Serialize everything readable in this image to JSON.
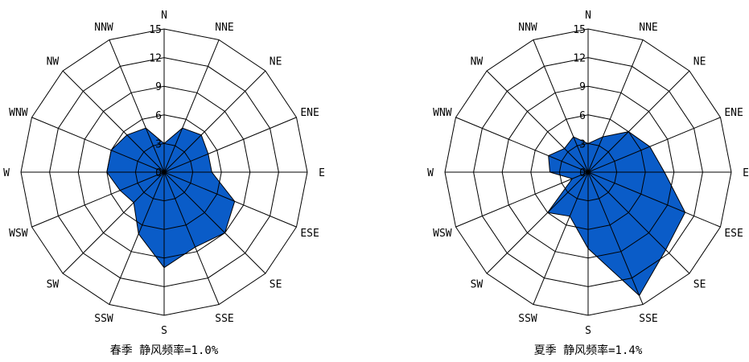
{
  "chart_data": [
    {
      "type": "radar",
      "caption": "春季  静风频率=1.0%",
      "directions": [
        "N",
        "NNE",
        "NE",
        "ENE",
        "E",
        "ESE",
        "SE",
        "SSE",
        "S",
        "SSW",
        "SW",
        "WSW",
        "W",
        "WNW",
        "NW",
        "NNW"
      ],
      "values": [
        3,
        5,
        5.5,
        5,
        5,
        8,
        9,
        8.5,
        10,
        7,
        4.5,
        5,
        6,
        6,
        5.5,
        5
      ],
      "ticks": [
        "0",
        "3",
        "6",
        "9",
        "12",
        "15"
      ],
      "rlim": [
        0,
        15
      ],
      "fill_color": "#0a5cc8"
    },
    {
      "type": "radar",
      "caption": "夏季  静风频率=1.4%",
      "directions": [
        "N",
        "NNE",
        "NE",
        "ENE",
        "E",
        "ESE",
        "SE",
        "SSE",
        "S",
        "SSW",
        "SW",
        "WSW",
        "W",
        "WNW",
        "NW",
        "NNW"
      ],
      "values": [
        3,
        4,
        6,
        7,
        8,
        11,
        11.5,
        14,
        8,
        5,
        6,
        1.8,
        4,
        4.5,
        3.5,
        4
      ],
      "ticks": [
        "0",
        "3",
        "6",
        "9",
        "12",
        "15"
      ],
      "rlim": [
        0,
        15
      ],
      "fill_color": "#0a5cc8"
    }
  ]
}
